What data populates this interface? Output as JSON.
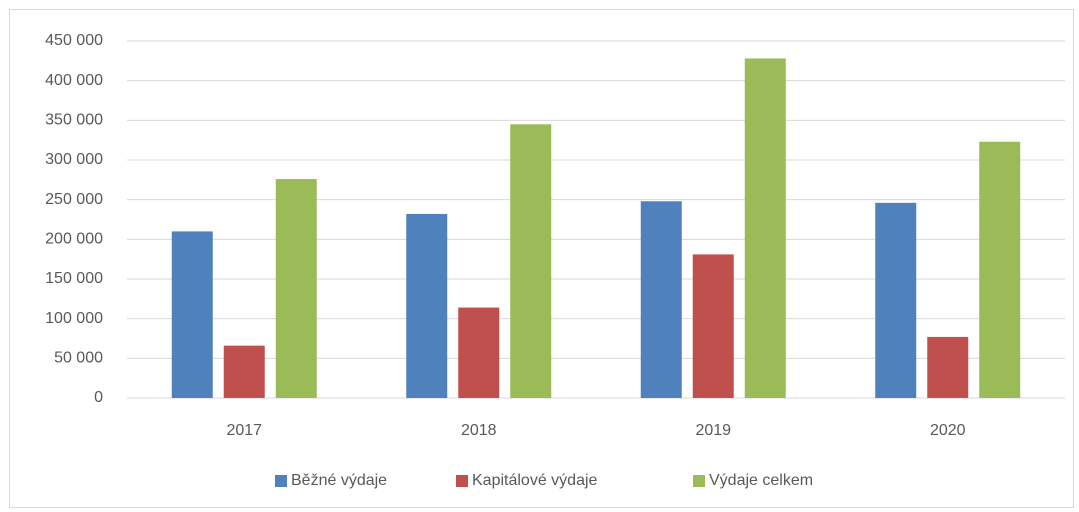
{
  "chart_data": {
    "type": "bar",
    "categories": [
      "2017",
      "2018",
      "2019",
      "2020"
    ],
    "series": [
      {
        "name": "Běžné výdaje",
        "color": "#4f81bd",
        "values": [
          210000,
          232000,
          248000,
          246000
        ]
      },
      {
        "name": "Kapitálové výdaje",
        "color": "#c0504d",
        "values": [
          66000,
          114000,
          181000,
          77000
        ]
      },
      {
        "name": "Výdaje celkem",
        "color": "#9bbb59",
        "values": [
          276000,
          345000,
          428000,
          323000
        ]
      }
    ],
    "ylim": [
      0,
      450000
    ],
    "yticks": [
      0,
      {
        "value": 50000,
        "label": "50 000"
      },
      {
        "value": 100000,
        "label": "100 000"
      },
      {
        "value": 150000,
        "label": "150 000"
      },
      {
        "value": 200000,
        "label": "200 000"
      },
      {
        "value": 250000,
        "label": "250 000"
      },
      {
        "value": 300000,
        "label": "300 000"
      },
      {
        "value": 350000,
        "label": "350 000"
      },
      {
        "value": 400000,
        "label": "400 000"
      },
      {
        "value": 450000,
        "label": "450 000"
      }
    ],
    "grid": true,
    "legend": "bottom"
  }
}
